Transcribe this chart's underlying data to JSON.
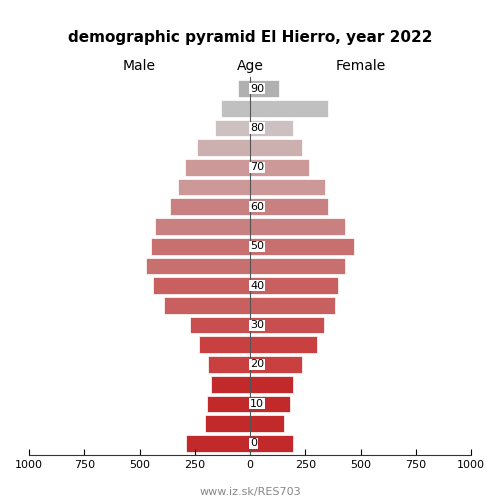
{
  "title": "demographic pyramid El Hierro, year 2022",
  "xlabel_left": "Male",
  "xlabel_center": "Age",
  "xlabel_right": "Female",
  "footer": "www.iz.sk/RES703",
  "xlim": 1000,
  "age_groups": [
    0,
    5,
    10,
    15,
    20,
    25,
    30,
    35,
    40,
    45,
    50,
    55,
    60,
    65,
    70,
    75,
    80,
    85,
    90
  ],
  "male_values": [
    290,
    205,
    195,
    175,
    190,
    230,
    270,
    390,
    440,
    470,
    450,
    430,
    360,
    325,
    295,
    240,
    160,
    130,
    55
  ],
  "female_values": [
    195,
    155,
    180,
    195,
    235,
    305,
    335,
    385,
    400,
    430,
    470,
    430,
    355,
    340,
    265,
    235,
    195,
    355,
    130
  ],
  "colors": [
    "#c1292b",
    "#c1292b",
    "#c1292b",
    "#c1292b",
    "#c94040",
    "#c94040",
    "#c84f4f",
    "#c86060",
    "#c86060",
    "#c87070",
    "#c87070",
    "#c88080",
    "#c88080",
    "#cc9898",
    "#cc9898",
    "#ccb0b0",
    "#ccc0c0",
    "#c0c0c0",
    "#b0b0b0"
  ],
  "bar_height": 0.85,
  "background_color": "#ffffff"
}
